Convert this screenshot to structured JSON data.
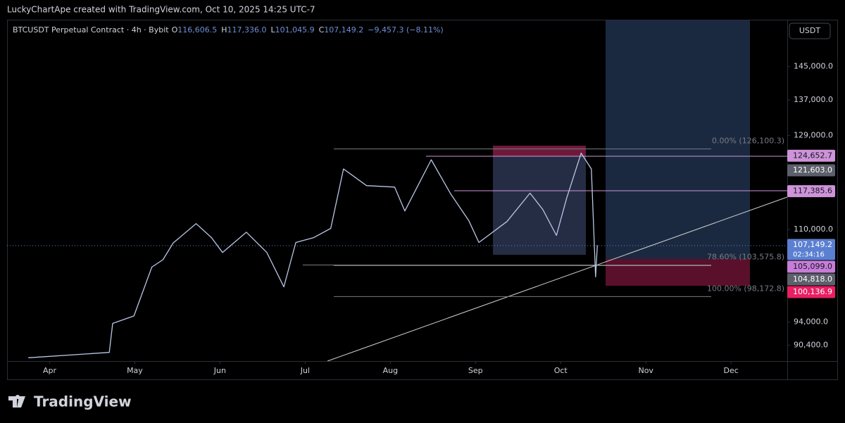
{
  "header": {
    "attribution": "LuckyChartApe created with TradingView.com, Oct 10, 2025 14:25 UTC-7"
  },
  "legend": {
    "symbol": "BTCUSDT Perpetual Contract · 4h · Bybit",
    "ohlc": [
      {
        "key": "O",
        "value": "116,606.5"
      },
      {
        "key": "H",
        "value": "117,336.0"
      },
      {
        "key": "L",
        "value": "101,045.9"
      },
      {
        "key": "C",
        "value": "107,149.2"
      }
    ],
    "change": "−9,457.3 (−8.11%)"
  },
  "currency": "USDT",
  "footer": {
    "brand": "TradingView"
  },
  "chart_data": {
    "type": "line",
    "color": "#b9c7e6",
    "log_scale": true,
    "grid": false,
    "x": [
      3.75,
      4.7,
      4.74,
      4.99,
      5.2,
      5.33,
      5.45,
      5.72,
      5.9,
      6.03,
      6.31,
      6.55,
      6.75,
      6.89,
      7.1,
      7.3,
      7.45,
      7.72,
      8.05,
      8.17,
      8.48,
      8.71,
      8.92,
      9.04,
      9.37,
      9.64,
      9.79,
      9.95,
      10.07,
      10.24,
      10.36,
      10.41,
      10.43
    ],
    "values": [
      88500,
      89300,
      93800,
      95000,
      103200,
      104500,
      107500,
      111100,
      108500,
      105800,
      109500,
      105800,
      99800,
      107600,
      108500,
      110200,
      121900,
      118500,
      118200,
      113500,
      123800,
      116800,
      111700,
      107600,
      111500,
      117000,
      113800,
      108900,
      116000,
      125200,
      121900,
      101500,
      107100
    ],
    "xlim": [
      3.5,
      12.66
    ],
    "xticks": [
      {
        "value": 4,
        "label": "Apr"
      },
      {
        "value": 5,
        "label": "May"
      },
      {
        "value": 6,
        "label": "Jun"
      },
      {
        "value": 7,
        "label": "Jul"
      },
      {
        "value": 8,
        "label": "Aug"
      },
      {
        "value": 9,
        "label": "Sep"
      },
      {
        "value": 10,
        "label": "Oct"
      },
      {
        "value": 11,
        "label": "Nov"
      },
      {
        "value": 12,
        "label": "Dec"
      }
    ],
    "ylim": [
      88000,
      157000
    ],
    "yticks": [
      {
        "value": 145000,
        "label": "145,000.0"
      },
      {
        "value": 137000,
        "label": "137,000.0"
      },
      {
        "value": 129000,
        "label": "129,000.0"
      },
      {
        "value": 110000,
        "label": "110,000.0"
      },
      {
        "value": 94000,
        "label": "94,000.0"
      },
      {
        "value": 90400,
        "label": "90,400.0"
      }
    ],
    "fib_levels": [
      {
        "value": 126100.3,
        "label": "0.00% (126,100.3)"
      },
      {
        "value": 103575.8,
        "label": "78.60% (103,575.8)"
      },
      {
        "value": 98172.8,
        "label": "100.00% (98,172.8)"
      }
    ],
    "price_tags": [
      {
        "value": 124652.7,
        "label": "124,652.7",
        "color": "#ce93d8"
      },
      {
        "value": 121603.0,
        "label": "121,603.0",
        "color": "#5d606b"
      },
      {
        "value": 117385.6,
        "label": "117,385.6",
        "color": "#ce93d8"
      },
      {
        "value": 107149.2,
        "label": "107,149.2",
        "color": "#5b7fd1",
        "countdown": "02:34:16"
      },
      {
        "value": 105099.0,
        "label": "105,099.0",
        "color": "#c77dd7"
      },
      {
        "value": 104818.0,
        "label": "104,818.0",
        "color": "#5d606b"
      },
      {
        "value": 100136.9,
        "label": "100,136.9",
        "color": "#e91e63"
      }
    ]
  }
}
